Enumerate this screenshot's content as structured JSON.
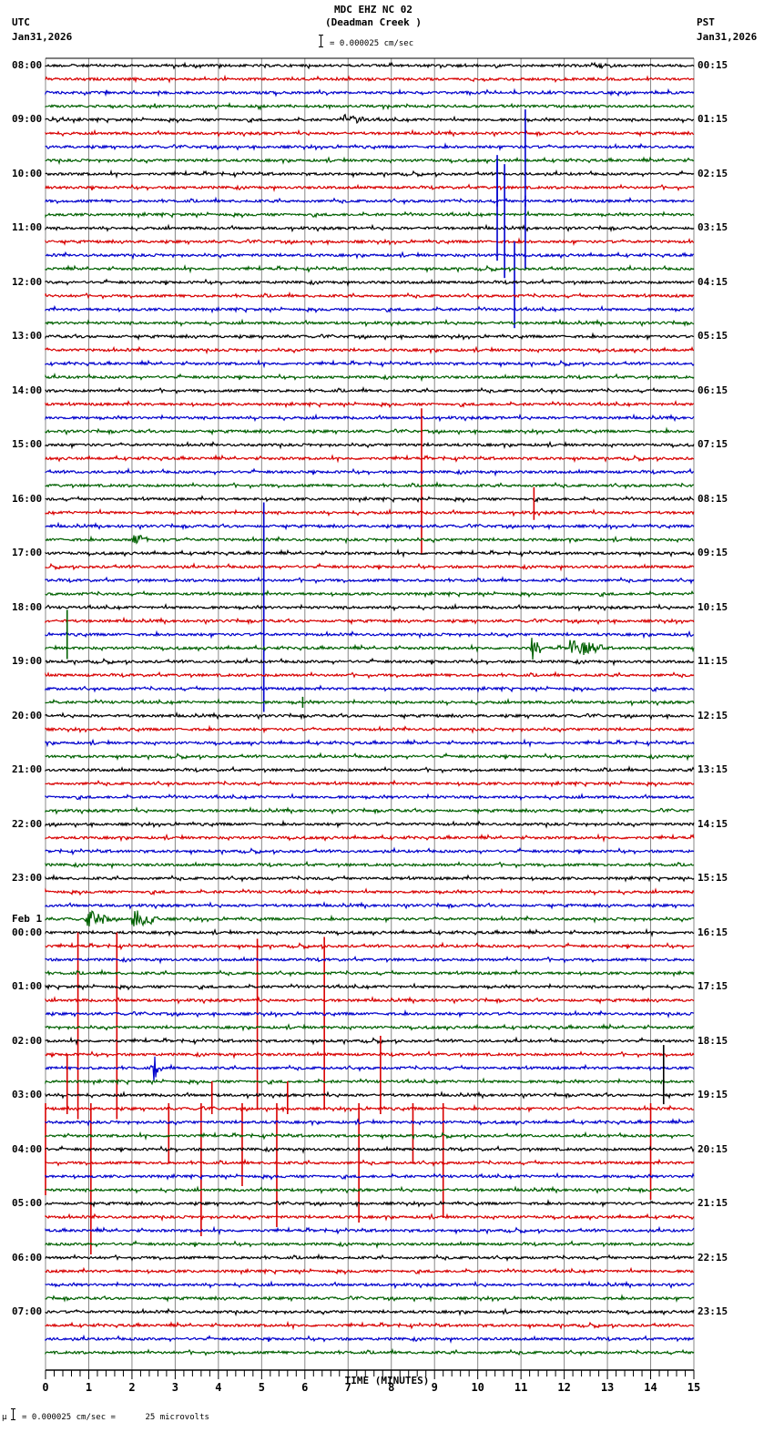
{
  "header": {
    "station_line": "MDC EHZ NC 02",
    "station_name": "(Deadman Creek )",
    "left_tz": "UTC",
    "left_date": "Jan31,2026",
    "right_tz": "PST",
    "right_date": "Jan31,2026",
    "scale_text": "= 0.000025 cm/sec"
  },
  "footer": {
    "scale_prefix": "μ",
    "scale_text": "= 0.000025 cm/sec =      25 microvolts"
  },
  "chart_data": {
    "type": "helicorder",
    "title": "MDC EHZ NC 02 (Deadman Creek )",
    "xlabel": "TIME (MINUTES)",
    "x_ticks": [
      "0",
      "1",
      "2",
      "3",
      "4",
      "5",
      "6",
      "7",
      "8",
      "9",
      "10",
      "11",
      "12",
      "13",
      "14",
      "15"
    ],
    "xlim": [
      0,
      15
    ],
    "minor_ticks_per_minute": 5,
    "grid": true,
    "trace_colors": [
      "#000000",
      "#d80000",
      "#0000cc",
      "#006000"
    ],
    "traces_per_hour": 4,
    "trace_count": 96,
    "left_labels": [
      {
        "row": 0,
        "text": "08:00"
      },
      {
        "row": 4,
        "text": "09:00"
      },
      {
        "row": 8,
        "text": "10:00"
      },
      {
        "row": 12,
        "text": "11:00"
      },
      {
        "row": 16,
        "text": "12:00"
      },
      {
        "row": 20,
        "text": "13:00"
      },
      {
        "row": 24,
        "text": "14:00"
      },
      {
        "row": 28,
        "text": "15:00"
      },
      {
        "row": 32,
        "text": "16:00"
      },
      {
        "row": 36,
        "text": "17:00"
      },
      {
        "row": 40,
        "text": "18:00"
      },
      {
        "row": 44,
        "text": "19:00"
      },
      {
        "row": 48,
        "text": "20:00"
      },
      {
        "row": 52,
        "text": "21:00"
      },
      {
        "row": 56,
        "text": "22:00"
      },
      {
        "row": 60,
        "text": "23:00"
      },
      {
        "row": 64,
        "text": "00:00",
        "pre": "Feb 1"
      },
      {
        "row": 68,
        "text": "01:00"
      },
      {
        "row": 72,
        "text": "02:00"
      },
      {
        "row": 76,
        "text": "03:00"
      },
      {
        "row": 80,
        "text": "04:00"
      },
      {
        "row": 84,
        "text": "05:00"
      },
      {
        "row": 88,
        "text": "06:00"
      },
      {
        "row": 92,
        "text": "07:00"
      }
    ],
    "right_labels": [
      {
        "row": 0,
        "text": "00:15"
      },
      {
        "row": 4,
        "text": "01:15"
      },
      {
        "row": 8,
        "text": "02:15"
      },
      {
        "row": 12,
        "text": "03:15"
      },
      {
        "row": 16,
        "text": "04:15"
      },
      {
        "row": 20,
        "text": "05:15"
      },
      {
        "row": 24,
        "text": "06:15"
      },
      {
        "row": 28,
        "text": "07:15"
      },
      {
        "row": 32,
        "text": "08:15"
      },
      {
        "row": 36,
        "text": "09:15"
      },
      {
        "row": 40,
        "text": "10:15"
      },
      {
        "row": 44,
        "text": "11:15"
      },
      {
        "row": 48,
        "text": "12:15"
      },
      {
        "row": 52,
        "text": "13:15"
      },
      {
        "row": 56,
        "text": "14:15"
      },
      {
        "row": 60,
        "text": "15:15"
      },
      {
        "row": 64,
        "text": "16:15"
      },
      {
        "row": 68,
        "text": "17:15"
      },
      {
        "row": 72,
        "text": "18:15"
      },
      {
        "row": 76,
        "text": "19:15"
      },
      {
        "row": 80,
        "text": "20:15"
      },
      {
        "row": 84,
        "text": "21:15"
      },
      {
        "row": 88,
        "text": "22:15"
      },
      {
        "row": 92,
        "text": "23:15"
      }
    ],
    "events": [
      {
        "row": 4,
        "t": 6.9,
        "type": "burst",
        "amp": 4,
        "dur": 0.5
      },
      {
        "row": 10,
        "t": 10.45,
        "type": "spike",
        "up": 44,
        "down": 0
      },
      {
        "row": 10,
        "t": 11.1,
        "type": "spike",
        "up": 0,
        "down": 0
      },
      {
        "row": 14,
        "t": 10.45,
        "type": "spike",
        "up": 110,
        "down": 0
      },
      {
        "row": 14,
        "t": 10.62,
        "type": "spike",
        "up": 100,
        "down": 25
      },
      {
        "row": 14,
        "t": 10.85,
        "type": "spike",
        "up": 15,
        "down": 80
      },
      {
        "row": 14,
        "t": 11.1,
        "type": "spike",
        "up": 160,
        "down": 15
      },
      {
        "row": 29,
        "t": 8.7,
        "type": "spike",
        "up": 55,
        "down": 105
      },
      {
        "row": 33,
        "t": 11.3,
        "type": "spike",
        "up": 28,
        "down": 8
      },
      {
        "row": 35,
        "t": 2.0,
        "type": "burst",
        "amp": 5,
        "dur": 0.4
      },
      {
        "row": 42,
        "t": 5.05,
        "type": "spike",
        "up": 145,
        "down": 85
      },
      {
        "row": 43,
        "t": 0.5,
        "type": "spike",
        "up": 42,
        "down": 12
      },
      {
        "row": 43,
        "t": 11.2,
        "type": "burst",
        "amp": 10,
        "dur": 0.3
      },
      {
        "row": 43,
        "t": 12.1,
        "type": "burst",
        "amp": 7,
        "dur": 0.8
      },
      {
        "row": 47,
        "t": 5.95,
        "type": "spike",
        "up": 0,
        "down": 0
      },
      {
        "row": 63,
        "t": 0.9,
        "type": "burst",
        "amp": 8,
        "dur": 0.6
      },
      {
        "row": 63,
        "t": 2.0,
        "type": "burst",
        "amp": 8,
        "dur": 0.6
      },
      {
        "row": 65,
        "t": 0.75,
        "type": "spike",
        "up": 15,
        "down": 190
      },
      {
        "row": 65,
        "t": 1.65,
        "type": "spike",
        "up": 15,
        "down": 190
      },
      {
        "row": 65,
        "t": 4.9,
        "type": "spike",
        "up": 8,
        "down": 180
      },
      {
        "row": 65,
        "t": 6.45,
        "type": "spike",
        "up": 10,
        "down": 180
      },
      {
        "row": 74,
        "t": 2.5,
        "type": "burst",
        "amp": 10,
        "dur": 0.2
      },
      {
        "row": 76,
        "t": 14.3,
        "type": "spike",
        "up": 55,
        "down": 10
      },
      {
        "row": 77,
        "t": 0.5,
        "type": "spike",
        "up": 60,
        "down": 0
      },
      {
        "row": 77,
        "t": 3.85,
        "type": "spike",
        "up": 30,
        "down": 0
      },
      {
        "row": 77,
        "t": 5.6,
        "type": "spike",
        "up": 30,
        "down": 0
      },
      {
        "row": 77,
        "t": 7.75,
        "type": "spike",
        "up": 80,
        "down": 0
      },
      {
        "row": 77,
        "t": 0.0,
        "type": "spike",
        "up": 0,
        "down": 95
      },
      {
        "row": 77,
        "t": 1.05,
        "type": "spike",
        "up": 0,
        "down": 160
      },
      {
        "row": 77,
        "t": 5.35,
        "type": "spike",
        "up": 0,
        "down": 130
      },
      {
        "row": 77,
        "t": 7.25,
        "type": "spike",
        "up": 0,
        "down": 125
      },
      {
        "row": 77,
        "t": 9.2,
        "type": "spike",
        "up": 0,
        "down": 120
      },
      {
        "row": 77,
        "t": 8.5,
        "type": "spike",
        "up": 0,
        "down": 60
      },
      {
        "row": 77,
        "t": 3.6,
        "type": "spike",
        "up": 0,
        "down": 140
      },
      {
        "row": 77,
        "t": 2.85,
        "type": "spike",
        "up": 0,
        "down": 60
      },
      {
        "row": 77,
        "t": 4.55,
        "type": "spike",
        "up": 0,
        "down": 85
      },
      {
        "row": 77,
        "t": 14.0,
        "type": "spike",
        "up": 0,
        "down": 100
      }
    ]
  }
}
